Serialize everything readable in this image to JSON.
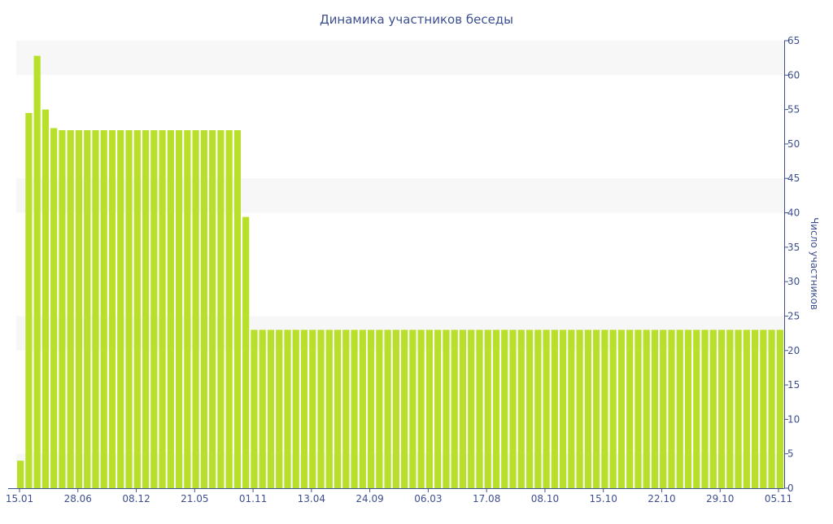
{
  "colors": {
    "bar": "#b8e02a",
    "band": "#f7f7f7",
    "axis": "#3d4f8f",
    "text": "#3d4f8f"
  },
  "chart_data": {
    "type": "bar",
    "title": "Динамика участников беседы",
    "xlabel": "",
    "ylabel": "Число участников",
    "ylim": [
      0,
      65
    ],
    "yticks": [
      0,
      5,
      10,
      15,
      20,
      25,
      30,
      35,
      40,
      45,
      50,
      55,
      60,
      65
    ],
    "y_axis_side": "right",
    "grid": "alternating horizontal bands",
    "legend": "none",
    "x_tick_labels": [
      "15.01",
      "28.06",
      "08.12",
      "21.05",
      "01.11",
      "13.04",
      "24.09",
      "06.03",
      "17.08",
      "08.10",
      "15.10",
      "22.10",
      "29.10",
      "05.11"
    ],
    "values": [
      4,
      54.5,
      62.8,
      55,
      52.3,
      52,
      52,
      52,
      52,
      52,
      52,
      52,
      52,
      52,
      52,
      52,
      52,
      52,
      52,
      52,
      52,
      52,
      52,
      52,
      52,
      52,
      52,
      39.4,
      23,
      23,
      23,
      23,
      23,
      23,
      23,
      23,
      23,
      23,
      23,
      23,
      23,
      23,
      23,
      23,
      23,
      23,
      23,
      23,
      23,
      23,
      23,
      23,
      23,
      23,
      23,
      23,
      23,
      23,
      23,
      23,
      23,
      23,
      23,
      23,
      23,
      23,
      23,
      23,
      23,
      23,
      23,
      23,
      23,
      23,
      23,
      23,
      23,
      23,
      23,
      23,
      23,
      23,
      23,
      23,
      23,
      23,
      23,
      23,
      23,
      23,
      23,
      23
    ]
  }
}
